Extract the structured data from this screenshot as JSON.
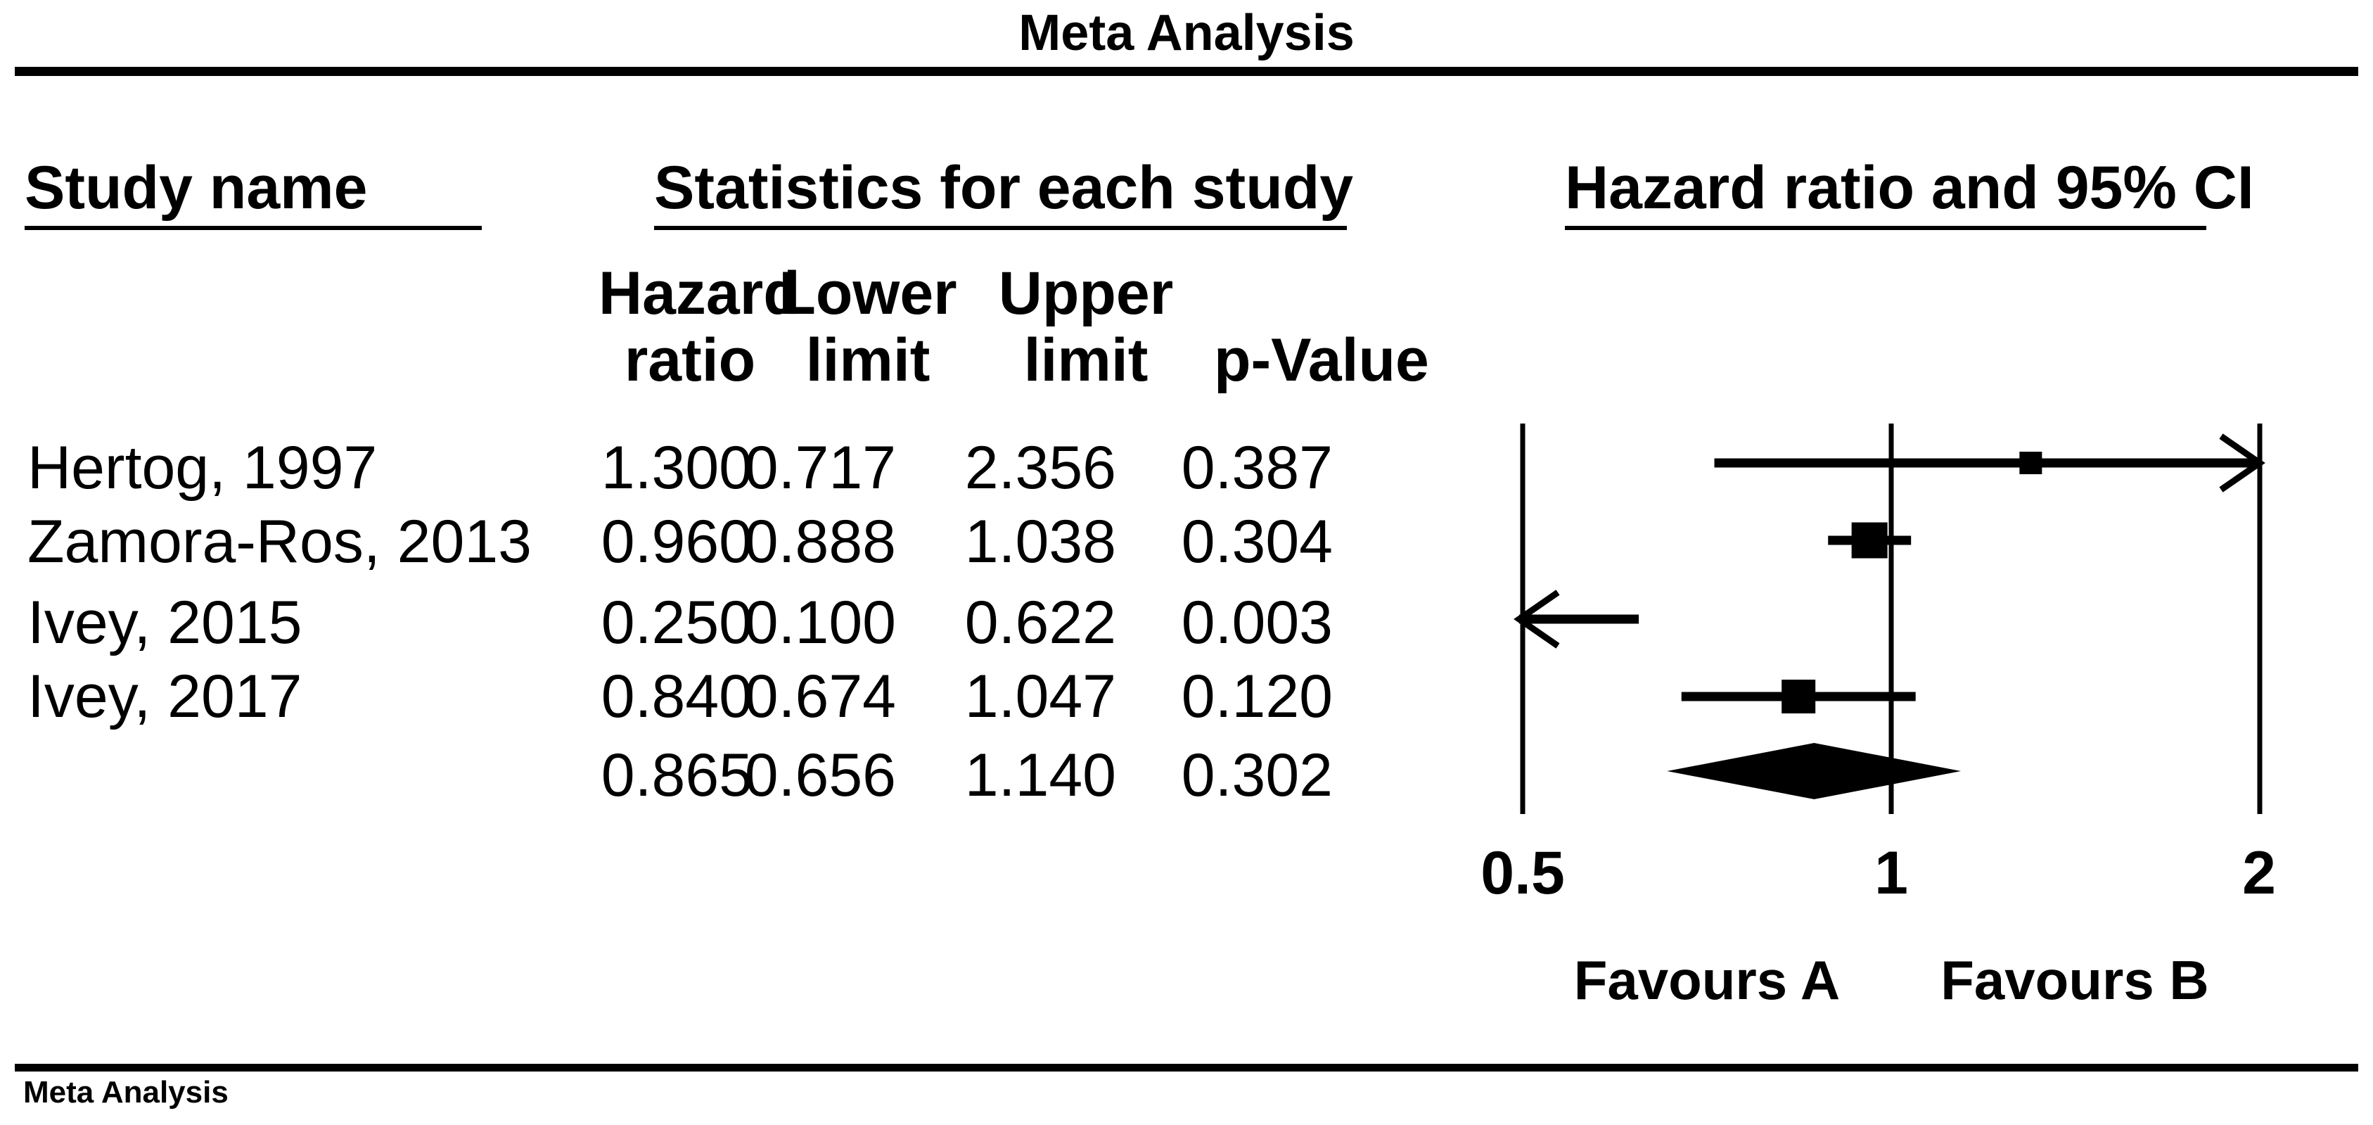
{
  "page": {
    "title": "Meta Analysis",
    "footer": "Meta Analysis"
  },
  "headers": {
    "study": "Study name",
    "statistics": "Statistics for each study",
    "plot": "Hazard ratio and 95% CI",
    "columns": [
      {
        "line1": "Hazard",
        "line2": "ratio"
      },
      {
        "line1": "Lower",
        "line2": "limit"
      },
      {
        "line1": "Upper",
        "line2": "limit"
      },
      {
        "line1": "",
        "line2": "p-Value"
      }
    ]
  },
  "chart_data": {
    "type": "forest",
    "title": "Meta Analysis",
    "x_scale": "log2",
    "xlim": [
      0.5,
      2
    ],
    "axis_ticks": [
      {
        "value": 0.5,
        "label": "0.5"
      },
      {
        "value": 1,
        "label": "1"
      },
      {
        "value": 2,
        "label": "2"
      }
    ],
    "favours_left": "Favours A",
    "favours_right": "Favours B",
    "studies": [
      {
        "name": "Hertog, 1997",
        "hazard_ratio": "1.300",
        "lower_limit": "0.717",
        "upper_limit": "2.356",
        "p_value": "0.387",
        "marker_size": 32
      },
      {
        "name": "Zamora-Ros, 2013",
        "hazard_ratio": "0.960",
        "lower_limit": "0.888",
        "upper_limit": "1.038",
        "p_value": "0.304",
        "marker_size": 51
      },
      {
        "name": "Ivey, 2015",
        "hazard_ratio": "0.250",
        "lower_limit": "0.100",
        "upper_limit": "0.622",
        "p_value": "0.003",
        "marker_size": 40
      },
      {
        "name": "Ivey, 2017",
        "hazard_ratio": "0.840",
        "lower_limit": "0.674",
        "upper_limit": "1.047",
        "p_value": "0.120",
        "marker_size": 48
      }
    ],
    "summary": {
      "name": "",
      "hazard_ratio": "0.865",
      "lower_limit": "0.656",
      "upper_limit": "1.140",
      "p_value": "0.302"
    },
    "colors": {
      "ink": "#000000",
      "background": "#ffffff"
    }
  }
}
